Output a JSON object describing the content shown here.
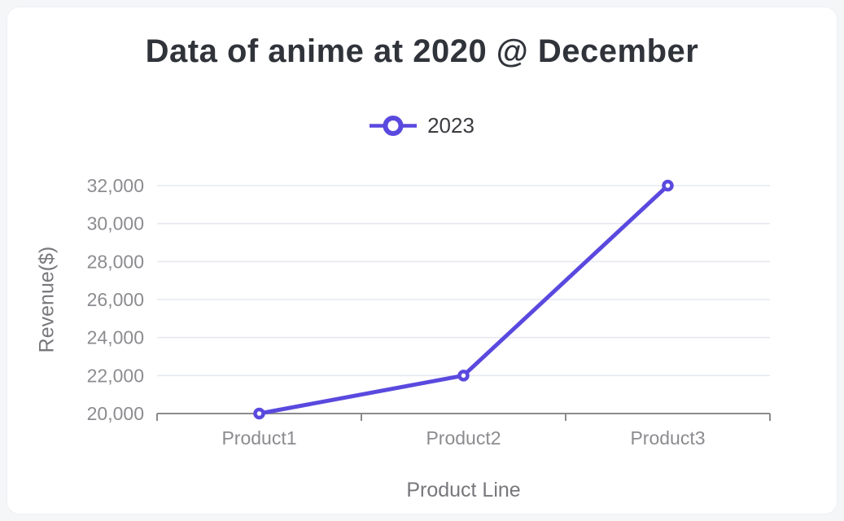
{
  "page": {
    "background": "#f4f6f8"
  },
  "card": {
    "background": "#ffffff"
  },
  "header": {
    "title": "Data of anime at 2020 @ December"
  },
  "legend": {
    "items": [
      {
        "label": "2023",
        "color": "#5a49de",
        "marker": "hollow-circle-on-line"
      }
    ]
  },
  "chart_data": {
    "type": "line",
    "title": "Data of anime at 2020 @ December",
    "xlabel": "Product Line",
    "ylabel": "Revenue($)",
    "categories": [
      "Product1",
      "Product2",
      "Product3"
    ],
    "series": [
      {
        "name": "2023",
        "values": [
          20000,
          22000,
          32000
        ],
        "color": "#5a49de",
        "marker": "hollow-circle"
      }
    ],
    "ylim": [
      20000,
      32000
    ],
    "ytick_interval": 2000,
    "yticks": [
      20000,
      22000,
      24000,
      26000,
      28000,
      30000,
      32000
    ],
    "ytick_labels": [
      "20,000",
      "22,000",
      "24,000",
      "26,000",
      "28,000",
      "30,000",
      "32,000"
    ],
    "grid": true,
    "legend_position": "top-center"
  },
  "colors": {
    "series": "#5a49de",
    "grid_line": "#e5e8f1",
    "axis_line": "#8b8b8b",
    "tick_text": "#8c8c90",
    "axis_title_text": "#77777c",
    "title_text": "#30343a",
    "legend_text": "#3b3b40",
    "page_bg": "#f4f6f8",
    "card_bg": "#ffffff"
  }
}
